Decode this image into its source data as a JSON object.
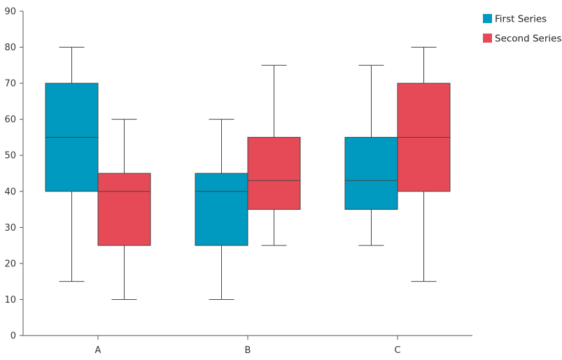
{
  "chart_data": {
    "type": "boxplot",
    "categories": [
      "A",
      "B",
      "C"
    ],
    "ylim": [
      0,
      90
    ],
    "y_ticks": [
      0,
      10,
      20,
      30,
      40,
      50,
      60,
      70,
      80,
      90
    ],
    "grid": false,
    "legend_position": "top-right",
    "series": [
      {
        "name": "First Series",
        "color": "#0099bf",
        "boxes": [
          {
            "min": 15,
            "q1": 40,
            "median": 55,
            "q3": 70,
            "max": 80
          },
          {
            "min": 10,
            "q1": 25,
            "median": 40,
            "q3": 45,
            "max": 60
          },
          {
            "min": 25,
            "q1": 35,
            "median": 43,
            "q3": 55,
            "max": 75
          }
        ]
      },
      {
        "name": "Second Series",
        "color": "#e64a57",
        "boxes": [
          {
            "min": 10,
            "q1": 25,
            "median": 40,
            "q3": 45,
            "max": 60
          },
          {
            "min": 25,
            "q1": 35,
            "median": 43,
            "q3": 55,
            "max": 75
          },
          {
            "min": 15,
            "q1": 40,
            "median": 55,
            "q3": 70,
            "max": 80
          }
        ]
      }
    ]
  }
}
